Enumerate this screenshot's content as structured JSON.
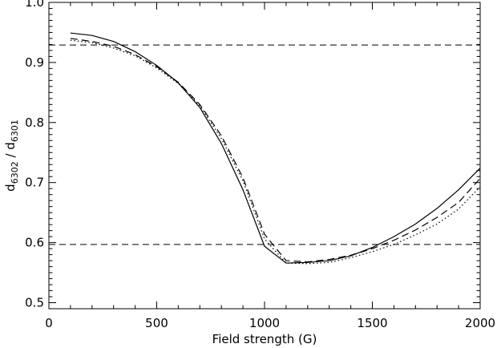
{
  "chart_data": {
    "type": "line",
    "title": "",
    "xlabel": "Field strength (G)",
    "ylabel": {
      "main": "d",
      "num_sub": "6302",
      "sep": " / ",
      "den_main": "d",
      "den_sub": "6301"
    },
    "xlim": [
      0,
      2000
    ],
    "ylim": [
      0.49,
      1.0
    ],
    "xticks": [
      0,
      500,
      1000,
      1500,
      2000
    ],
    "yticks": [
      0.5,
      0.6,
      0.7,
      0.8,
      0.9,
      1.0
    ],
    "xtick_labels": [
      "0",
      "500",
      "1000",
      "1500",
      "2000"
    ],
    "ytick_labels": [
      "0.5",
      "0.6",
      "0.7",
      "0.8",
      "0.9",
      "1.0"
    ],
    "grid": false,
    "legend": "none",
    "series": [
      {
        "style": "solid",
        "x": [
          100,
          200,
          300,
          400,
          500,
          600,
          700,
          800,
          900,
          1000,
          1100,
          1200,
          1300,
          1400,
          1500,
          1600,
          1700,
          1800,
          1900,
          2000
        ],
        "y": [
          0.949,
          0.945,
          0.935,
          0.918,
          0.895,
          0.866,
          0.825,
          0.765,
          0.688,
          0.594,
          0.566,
          0.567,
          0.57,
          0.578,
          0.592,
          0.61,
          0.631,
          0.657,
          0.688,
          0.724
        ]
      },
      {
        "style": "dashed",
        "x": [
          100,
          200,
          300,
          400,
          500,
          600,
          700,
          800,
          900,
          1000,
          1100,
          1200,
          1300,
          1400,
          1500,
          1600,
          1700,
          1800,
          1900,
          2000
        ],
        "y": [
          0.94,
          0.935,
          0.927,
          0.913,
          0.893,
          0.867,
          0.83,
          0.778,
          0.708,
          0.614,
          0.57,
          0.568,
          0.572,
          0.579,
          0.59,
          0.604,
          0.621,
          0.642,
          0.667,
          0.707
        ]
      },
      {
        "style": "dotted",
        "x": [
          100,
          200,
          300,
          400,
          500,
          600,
          700,
          800,
          900,
          1000,
          1100,
          1200,
          1300,
          1400,
          1500,
          1600,
          1700,
          1800,
          1900,
          2000
        ],
        "y": [
          0.937,
          0.933,
          0.924,
          0.911,
          0.891,
          0.865,
          0.828,
          0.773,
          0.703,
          0.606,
          0.566,
          0.565,
          0.567,
          0.575,
          0.585,
          0.597,
          0.613,
          0.631,
          0.656,
          0.693
        ]
      }
    ],
    "reference_lines": [
      {
        "axis": "y",
        "value": 0.929,
        "style": "dashed"
      },
      {
        "axis": "y",
        "value": 0.597,
        "style": "dashed"
      }
    ]
  }
}
